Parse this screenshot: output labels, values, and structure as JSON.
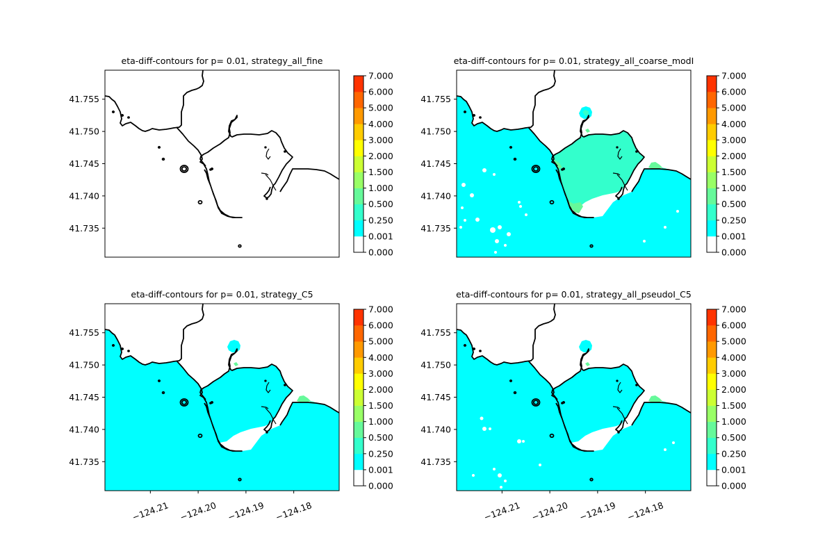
{
  "chart_data": [
    {
      "type": "heatmap",
      "title": "eta-diff-contours for p= 0.01, strategy_all_fine",
      "xlabel": "",
      "ylabel": "",
      "xlim": [
        -124.2195,
        -124.1705
      ],
      "ylim": [
        41.7305,
        41.7595
      ],
      "x_ticks": [],
      "x_tick_labels": [],
      "y_ticks": [
        41.735,
        41.74,
        41.745,
        41.75,
        41.755
      ],
      "y_tick_labels": [
        "41.735",
        "41.740",
        "41.745",
        "41.750",
        "41.755"
      ],
      "fill": "none",
      "colorbar": {
        "levels": [
          0.0,
          0.001,
          0.25,
          0.5,
          1.0,
          1.5,
          2.0,
          3.0,
          4.0,
          5.0,
          6.0,
          7.0
        ],
        "tick_labels": [
          "0.000",
          "0.001",
          "0.250",
          "0.500",
          "1.000",
          "1.500",
          "2.000",
          "3.000",
          "4.000",
          "5.000",
          "6.000",
          "7.000"
        ],
        "colors": [
          "#ffffff",
          "#00ffff",
          "#33ffcc",
          "#66f99a",
          "#99ff66",
          "#ccff33",
          "#ffff00",
          "#ffcc00",
          "#ff9900",
          "#ff6600",
          "#ff3300"
        ]
      }
    },
    {
      "type": "heatmap",
      "title": "eta-diff-contours for p= 0.01, strategy_all_coarse_modI",
      "xlabel": "",
      "ylabel": "",
      "xlim": [
        -124.2195,
        -124.1705
      ],
      "ylim": [
        41.7305,
        41.7595
      ],
      "x_ticks": [],
      "x_tick_labels": [],
      "y_ticks": [
        41.735,
        41.74,
        41.745,
        41.75,
        41.755
      ],
      "y_tick_labels": [
        "41.735",
        "41.740",
        "41.745",
        "41.750",
        "41.755"
      ],
      "fill": "coarse",
      "colorbar": {
        "levels": [
          0.0,
          0.001,
          0.25,
          0.5,
          1.0,
          1.5,
          2.0,
          3.0,
          4.0,
          5.0,
          6.0,
          7.0
        ],
        "tick_labels": [
          "0.000",
          "0.001",
          "0.250",
          "0.500",
          "1.000",
          "1.500",
          "2.000",
          "3.000",
          "4.000",
          "5.000",
          "6.000",
          "7.000"
        ],
        "colors": [
          "#ffffff",
          "#00ffff",
          "#33ffcc",
          "#66f99a",
          "#99ff66",
          "#ccff33",
          "#ffff00",
          "#ffcc00",
          "#ff9900",
          "#ff6600",
          "#ff3300"
        ]
      }
    },
    {
      "type": "heatmap",
      "title": "eta-diff-contours for p= 0.01, strategy_C5",
      "xlabel": "",
      "ylabel": "",
      "xlim": [
        -124.2195,
        -124.1705
      ],
      "ylim": [
        41.7305,
        41.7595
      ],
      "x_ticks": [
        -124.21,
        -124.2,
        -124.19,
        -124.18
      ],
      "x_tick_labels": [
        "−124.21",
        "−124.20",
        "−124.19",
        "−124.18"
      ],
      "y_ticks": [
        41.735,
        41.74,
        41.745,
        41.75,
        41.755
      ],
      "y_tick_labels": [
        "41.735",
        "41.740",
        "41.745",
        "41.750",
        "41.755"
      ],
      "fill": "c5",
      "colorbar": {
        "levels": [
          0.0,
          0.001,
          0.25,
          0.5,
          1.0,
          1.5,
          2.0,
          3.0,
          4.0,
          5.0,
          6.0,
          7.0
        ],
        "tick_labels": [
          "0.000",
          "0.001",
          "0.250",
          "0.500",
          "1.000",
          "1.500",
          "2.000",
          "3.000",
          "4.000",
          "5.000",
          "6.000",
          "7.000"
        ],
        "colors": [
          "#ffffff",
          "#00ffff",
          "#33ffcc",
          "#66f99a",
          "#99ff66",
          "#ccff33",
          "#ffff00",
          "#ffcc00",
          "#ff9900",
          "#ff6600",
          "#ff3300"
        ]
      }
    },
    {
      "type": "heatmap",
      "title": "eta-diff-contours for p= 0.01, strategy_all_pseudoI_C5",
      "xlabel": "",
      "ylabel": "",
      "xlim": [
        -124.2195,
        -124.1705
      ],
      "ylim": [
        41.7305,
        41.7595
      ],
      "x_ticks": [
        -124.21,
        -124.2,
        -124.19,
        -124.18
      ],
      "x_tick_labels": [
        "−124.21",
        "−124.20",
        "−124.19",
        "−124.18"
      ],
      "y_ticks": [
        41.735,
        41.74,
        41.745,
        41.75,
        41.755
      ],
      "y_tick_labels": [
        "41.735",
        "41.740",
        "41.745",
        "41.750",
        "41.755"
      ],
      "fill": "pseudo",
      "colorbar": {
        "levels": [
          0.0,
          0.001,
          0.25,
          0.5,
          1.0,
          1.5,
          2.0,
          3.0,
          4.0,
          5.0,
          6.0,
          7.0
        ],
        "tick_labels": [
          "0.000",
          "0.001",
          "0.250",
          "0.500",
          "1.000",
          "1.500",
          "2.000",
          "3.000",
          "4.000",
          "5.000",
          "6.000",
          "7.000"
        ],
        "colors": [
          "#ffffff",
          "#00ffff",
          "#33ffcc",
          "#66f99a",
          "#99ff66",
          "#ccff33",
          "#ffff00",
          "#ffcc00",
          "#ff9900",
          "#ff6600",
          "#ff3300"
        ]
      }
    }
  ]
}
